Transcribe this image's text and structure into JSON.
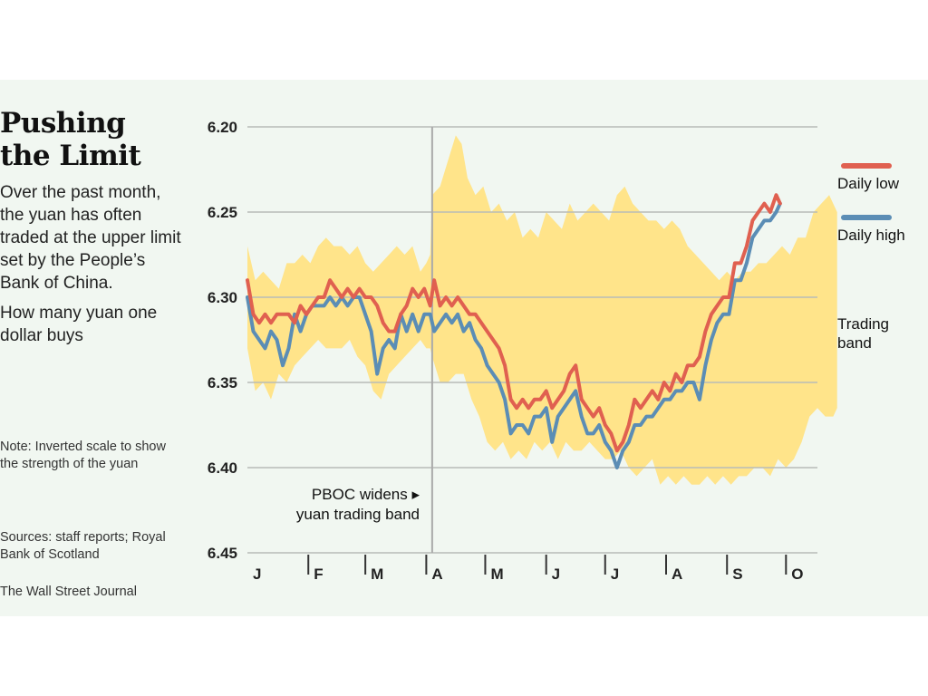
{
  "title_line1": "Pushing",
  "title_line2": "the Limit",
  "subtitle": "Over the past month, the yuan has often traded at the upper limit set by the People’s Bank of China.",
  "unit_label": "How many yuan one dollar buys",
  "note": "Note: Inverted scale to show the strength of the yuan",
  "sources": "Sources: staff reports; Royal Bank of Scotland",
  "credit": "The Wall Street Journal",
  "colors": {
    "background": "#f1f7f1",
    "band": "#ffe48a",
    "daily_low": "#e06050",
    "daily_high": "#5b8db5",
    "grid": "#b8bcb8"
  },
  "chart_data": {
    "type": "line",
    "inverted_y": true,
    "ylim": [
      6.2,
      6.45
    ],
    "yticks": [
      "6.20",
      "6.25",
      "6.30",
      "6.35",
      "6.40",
      "6.45"
    ],
    "xlim": [
      0,
      365
    ],
    "months": [
      {
        "label": "J",
        "start": 0
      },
      {
        "label": "F",
        "start": 31
      },
      {
        "label": "M",
        "start": 60
      },
      {
        "label": "A",
        "start": 91
      },
      {
        "label": "M",
        "start": 121
      },
      {
        "label": "J",
        "start": 152
      },
      {
        "label": "J",
        "start": 182
      },
      {
        "label": "A",
        "start": 213
      },
      {
        "label": "S",
        "start": 244
      },
      {
        "label": "O",
        "start": 274
      }
    ],
    "legend": {
      "daily_low": "Daily low",
      "daily_high": "Daily high",
      "band_line1": "Trading",
      "band_line2": "band"
    },
    "annotation": {
      "day": 94,
      "line1": "PBOC widens ▸",
      "line2": "yuan trading band"
    },
    "band_upper": [
      [
        0,
        6.27
      ],
      [
        4,
        6.29
      ],
      [
        8,
        6.285
      ],
      [
        12,
        6.29
      ],
      [
        16,
        6.295
      ],
      [
        20,
        6.28
      ],
      [
        24,
        6.28
      ],
      [
        28,
        6.275
      ],
      [
        32,
        6.28
      ],
      [
        36,
        6.27
      ],
      [
        40,
        6.265
      ],
      [
        44,
        6.27
      ],
      [
        48,
        6.27
      ],
      [
        52,
        6.275
      ],
      [
        56,
        6.27
      ],
      [
        60,
        6.28
      ],
      [
        64,
        6.285
      ],
      [
        68,
        6.28
      ],
      [
        72,
        6.275
      ],
      [
        76,
        6.27
      ],
      [
        80,
        6.275
      ],
      [
        84,
        6.27
      ],
      [
        88,
        6.285
      ],
      [
        91,
        6.28
      ],
      [
        93,
        6.275
      ],
      [
        94,
        6.24
      ],
      [
        98,
        6.235
      ],
      [
        102,
        6.22
      ],
      [
        106,
        6.205
      ],
      [
        109,
        6.21
      ],
      [
        112,
        6.23
      ],
      [
        116,
        6.24
      ],
      [
        120,
        6.235
      ],
      [
        124,
        6.25
      ],
      [
        128,
        6.245
      ],
      [
        132,
        6.255
      ],
      [
        136,
        6.25
      ],
      [
        140,
        6.265
      ],
      [
        144,
        6.26
      ],
      [
        148,
        6.265
      ],
      [
        152,
        6.25
      ],
      [
        156,
        6.255
      ],
      [
        160,
        6.26
      ],
      [
        164,
        6.245
      ],
      [
        168,
        6.255
      ],
      [
        172,
        6.25
      ],
      [
        176,
        6.245
      ],
      [
        180,
        6.25
      ],
      [
        184,
        6.255
      ],
      [
        188,
        6.24
      ],
      [
        192,
        6.235
      ],
      [
        196,
        6.245
      ],
      [
        200,
        6.25
      ],
      [
        204,
        6.255
      ],
      [
        208,
        6.255
      ],
      [
        212,
        6.26
      ],
      [
        216,
        6.255
      ],
      [
        220,
        6.26
      ],
      [
        224,
        6.27
      ],
      [
        228,
        6.275
      ],
      [
        232,
        6.28
      ],
      [
        236,
        6.285
      ],
      [
        240,
        6.29
      ],
      [
        244,
        6.285
      ],
      [
        248,
        6.29
      ],
      [
        252,
        6.285
      ],
      [
        256,
        6.285
      ],
      [
        260,
        6.28
      ],
      [
        264,
        6.28
      ],
      [
        268,
        6.275
      ],
      [
        272,
        6.27
      ],
      [
        276,
        6.275
      ],
      [
        280,
        6.265
      ],
      [
        284,
        6.265
      ],
      [
        288,
        6.25
      ],
      [
        292,
        6.245
      ],
      [
        296,
        6.24
      ],
      [
        300,
        6.25
      ]
    ],
    "band_lower": [
      [
        0,
        6.33
      ],
      [
        4,
        6.355
      ],
      [
        8,
        6.35
      ],
      [
        12,
        6.36
      ],
      [
        16,
        6.345
      ],
      [
        20,
        6.35
      ],
      [
        24,
        6.34
      ],
      [
        28,
        6.335
      ],
      [
        32,
        6.33
      ],
      [
        36,
        6.325
      ],
      [
        40,
        6.33
      ],
      [
        44,
        6.33
      ],
      [
        48,
        6.33
      ],
      [
        52,
        6.325
      ],
      [
        56,
        6.335
      ],
      [
        60,
        6.34
      ],
      [
        64,
        6.355
      ],
      [
        68,
        6.36
      ],
      [
        72,
        6.345
      ],
      [
        76,
        6.34
      ],
      [
        80,
        6.335
      ],
      [
        84,
        6.33
      ],
      [
        88,
        6.325
      ],
      [
        91,
        6.33
      ],
      [
        93,
        6.33
      ],
      [
        94,
        6.335
      ],
      [
        98,
        6.35
      ],
      [
        102,
        6.35
      ],
      [
        106,
        6.345
      ],
      [
        110,
        6.345
      ],
      [
        114,
        6.36
      ],
      [
        118,
        6.37
      ],
      [
        122,
        6.385
      ],
      [
        126,
        6.39
      ],
      [
        130,
        6.385
      ],
      [
        134,
        6.395
      ],
      [
        138,
        6.39
      ],
      [
        142,
        6.395
      ],
      [
        146,
        6.385
      ],
      [
        150,
        6.39
      ],
      [
        154,
        6.385
      ],
      [
        158,
        6.395
      ],
      [
        162,
        6.385
      ],
      [
        166,
        6.39
      ],
      [
        170,
        6.39
      ],
      [
        174,
        6.385
      ],
      [
        178,
        6.39
      ],
      [
        182,
        6.395
      ],
      [
        186,
        6.395
      ],
      [
        190,
        6.39
      ],
      [
        194,
        6.4
      ],
      [
        198,
        6.405
      ],
      [
        202,
        6.4
      ],
      [
        206,
        6.395
      ],
      [
        210,
        6.41
      ],
      [
        214,
        6.405
      ],
      [
        218,
        6.41
      ],
      [
        222,
        6.405
      ],
      [
        226,
        6.41
      ],
      [
        230,
        6.41
      ],
      [
        234,
        6.405
      ],
      [
        238,
        6.41
      ],
      [
        242,
        6.405
      ],
      [
        246,
        6.41
      ],
      [
        250,
        6.405
      ],
      [
        254,
        6.405
      ],
      [
        258,
        6.4
      ],
      [
        262,
        6.4
      ],
      [
        266,
        6.405
      ],
      [
        270,
        6.395
      ],
      [
        274,
        6.4
      ],
      [
        278,
        6.395
      ],
      [
        282,
        6.385
      ],
      [
        286,
        6.37
      ],
      [
        290,
        6.365
      ],
      [
        294,
        6.37
      ],
      [
        298,
        6.37
      ],
      [
        300,
        6.365
      ]
    ],
    "series": [
      {
        "name": "Daily low",
        "values": [
          [
            0,
            6.29
          ],
          [
            3,
            6.31
          ],
          [
            6,
            6.315
          ],
          [
            9,
            6.31
          ],
          [
            12,
            6.315
          ],
          [
            15,
            6.31
          ],
          [
            18,
            6.31
          ],
          [
            21,
            6.31
          ],
          [
            24,
            6.315
          ],
          [
            27,
            6.305
          ],
          [
            30,
            6.31
          ],
          [
            33,
            6.305
          ],
          [
            36,
            6.3
          ],
          [
            39,
            6.3
          ],
          [
            42,
            6.29
          ],
          [
            45,
            6.295
          ],
          [
            48,
            6.3
          ],
          [
            51,
            6.295
          ],
          [
            54,
            6.3
          ],
          [
            57,
            6.295
          ],
          [
            60,
            6.3
          ],
          [
            63,
            6.3
          ],
          [
            66,
            6.305
          ],
          [
            69,
            6.315
          ],
          [
            72,
            6.32
          ],
          [
            75,
            6.32
          ],
          [
            78,
            6.31
          ],
          [
            81,
            6.305
          ],
          [
            84,
            6.295
          ],
          [
            87,
            6.3
          ],
          [
            90,
            6.295
          ],
          [
            93,
            6.305
          ],
          [
            95,
            6.29
          ],
          [
            98,
            6.305
          ],
          [
            101,
            6.3
          ],
          [
            104,
            6.305
          ],
          [
            107,
            6.3
          ],
          [
            110,
            6.305
          ],
          [
            113,
            6.31
          ],
          [
            116,
            6.31
          ],
          [
            119,
            6.315
          ],
          [
            122,
            6.32
          ],
          [
            125,
            6.325
          ],
          [
            128,
            6.33
          ],
          [
            131,
            6.34
          ],
          [
            134,
            6.36
          ],
          [
            137,
            6.365
          ],
          [
            140,
            6.36
          ],
          [
            143,
            6.365
          ],
          [
            146,
            6.36
          ],
          [
            149,
            6.36
          ],
          [
            152,
            6.355
          ],
          [
            155,
            6.365
          ],
          [
            158,
            6.36
          ],
          [
            161,
            6.355
          ],
          [
            164,
            6.345
          ],
          [
            167,
            6.34
          ],
          [
            170,
            6.36
          ],
          [
            173,
            6.365
          ],
          [
            176,
            6.37
          ],
          [
            179,
            6.365
          ],
          [
            182,
            6.375
          ],
          [
            185,
            6.38
          ],
          [
            188,
            6.39
          ],
          [
            191,
            6.385
          ],
          [
            194,
            6.375
          ],
          [
            197,
            6.36
          ],
          [
            200,
            6.365
          ],
          [
            203,
            6.36
          ],
          [
            206,
            6.355
          ],
          [
            209,
            6.36
          ],
          [
            212,
            6.35
          ],
          [
            215,
            6.355
          ],
          [
            218,
            6.345
          ],
          [
            221,
            6.35
          ],
          [
            224,
            6.34
          ],
          [
            227,
            6.34
          ],
          [
            230,
            6.335
          ],
          [
            233,
            6.32
          ],
          [
            236,
            6.31
          ],
          [
            239,
            6.305
          ],
          [
            242,
            6.3
          ],
          [
            245,
            6.3
          ],
          [
            248,
            6.28
          ],
          [
            251,
            6.28
          ],
          [
            254,
            6.27
          ],
          [
            257,
            6.255
          ],
          [
            260,
            6.25
          ],
          [
            263,
            6.245
          ],
          [
            266,
            6.25
          ],
          [
            269,
            6.24
          ],
          [
            271,
            6.245
          ]
        ]
      },
      {
        "name": "Daily high",
        "values": [
          [
            0,
            6.3
          ],
          [
            3,
            6.32
          ],
          [
            6,
            6.325
          ],
          [
            9,
            6.33
          ],
          [
            12,
            6.32
          ],
          [
            15,
            6.325
          ],
          [
            18,
            6.34
          ],
          [
            21,
            6.33
          ],
          [
            24,
            6.31
          ],
          [
            27,
            6.32
          ],
          [
            30,
            6.31
          ],
          [
            33,
            6.305
          ],
          [
            36,
            6.305
          ],
          [
            39,
            6.305
          ],
          [
            42,
            6.3
          ],
          [
            45,
            6.305
          ],
          [
            48,
            6.3
          ],
          [
            51,
            6.305
          ],
          [
            54,
            6.3
          ],
          [
            57,
            6.3
          ],
          [
            60,
            6.31
          ],
          [
            63,
            6.32
          ],
          [
            66,
            6.345
          ],
          [
            69,
            6.33
          ],
          [
            72,
            6.325
          ],
          [
            75,
            6.33
          ],
          [
            78,
            6.31
          ],
          [
            81,
            6.32
          ],
          [
            84,
            6.31
          ],
          [
            87,
            6.32
          ],
          [
            90,
            6.31
          ],
          [
            93,
            6.31
          ],
          [
            95,
            6.32
          ],
          [
            98,
            6.315
          ],
          [
            101,
            6.31
          ],
          [
            104,
            6.315
          ],
          [
            107,
            6.31
          ],
          [
            110,
            6.32
          ],
          [
            113,
            6.315
          ],
          [
            116,
            6.325
          ],
          [
            119,
            6.33
          ],
          [
            122,
            6.34
          ],
          [
            125,
            6.345
          ],
          [
            128,
            6.35
          ],
          [
            131,
            6.36
          ],
          [
            134,
            6.38
          ],
          [
            137,
            6.375
          ],
          [
            140,
            6.375
          ],
          [
            143,
            6.38
          ],
          [
            146,
            6.37
          ],
          [
            149,
            6.37
          ],
          [
            152,
            6.365
          ],
          [
            155,
            6.385
          ],
          [
            158,
            6.37
          ],
          [
            161,
            6.365
          ],
          [
            164,
            6.36
          ],
          [
            167,
            6.355
          ],
          [
            170,
            6.37
          ],
          [
            173,
            6.38
          ],
          [
            176,
            6.38
          ],
          [
            179,
            6.375
          ],
          [
            182,
            6.385
          ],
          [
            185,
            6.39
          ],
          [
            188,
            6.4
          ],
          [
            191,
            6.39
          ],
          [
            194,
            6.385
          ],
          [
            197,
            6.375
          ],
          [
            200,
            6.375
          ],
          [
            203,
            6.37
          ],
          [
            206,
            6.37
          ],
          [
            209,
            6.365
          ],
          [
            212,
            6.36
          ],
          [
            215,
            6.36
          ],
          [
            218,
            6.355
          ],
          [
            221,
            6.355
          ],
          [
            224,
            6.35
          ],
          [
            227,
            6.35
          ],
          [
            230,
            6.36
          ],
          [
            233,
            6.34
          ],
          [
            236,
            6.325
          ],
          [
            239,
            6.315
          ],
          [
            242,
            6.31
          ],
          [
            245,
            6.31
          ],
          [
            248,
            6.29
          ],
          [
            251,
            6.29
          ],
          [
            254,
            6.28
          ],
          [
            257,
            6.265
          ],
          [
            260,
            6.26
          ],
          [
            263,
            6.255
          ],
          [
            266,
            6.255
          ],
          [
            269,
            6.25
          ],
          [
            271,
            6.245
          ]
        ]
      }
    ]
  }
}
